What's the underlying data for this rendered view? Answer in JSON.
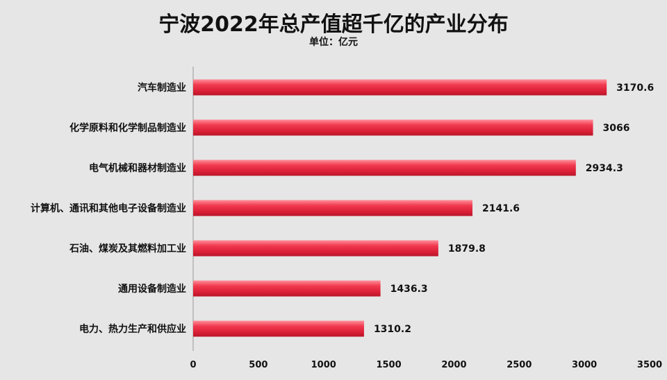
{
  "title": "宁波2022年总产值超千亿的产业分布",
  "subtitle": "单位：亿元",
  "chart_data": {
    "type": "bar",
    "orientation": "horizontal",
    "categories": [
      "汽车制造业",
      "化学原料和化学制品制造业",
      "电气机械和器材制造业",
      "计算机、通讯和其他电子设备制造业",
      "石油、煤炭及其燃料加工业",
      "通用设备制造业",
      "电力、热力生产和供应业"
    ],
    "values": [
      3170.6,
      3066,
      2934.3,
      2141.6,
      1879.8,
      1436.3,
      1310.2
    ],
    "value_labels": [
      "3170.6",
      "3066",
      "2934.3",
      "2141.6",
      "1879.8",
      "1436.3",
      "1310.2"
    ],
    "xlim": [
      0,
      3500
    ],
    "xticks": [
      "0",
      "500",
      "1000",
      "1500",
      "2000",
      "2500",
      "3000",
      "3500"
    ],
    "bar_color": "#e8344a",
    "grid": false,
    "legend": "none"
  }
}
